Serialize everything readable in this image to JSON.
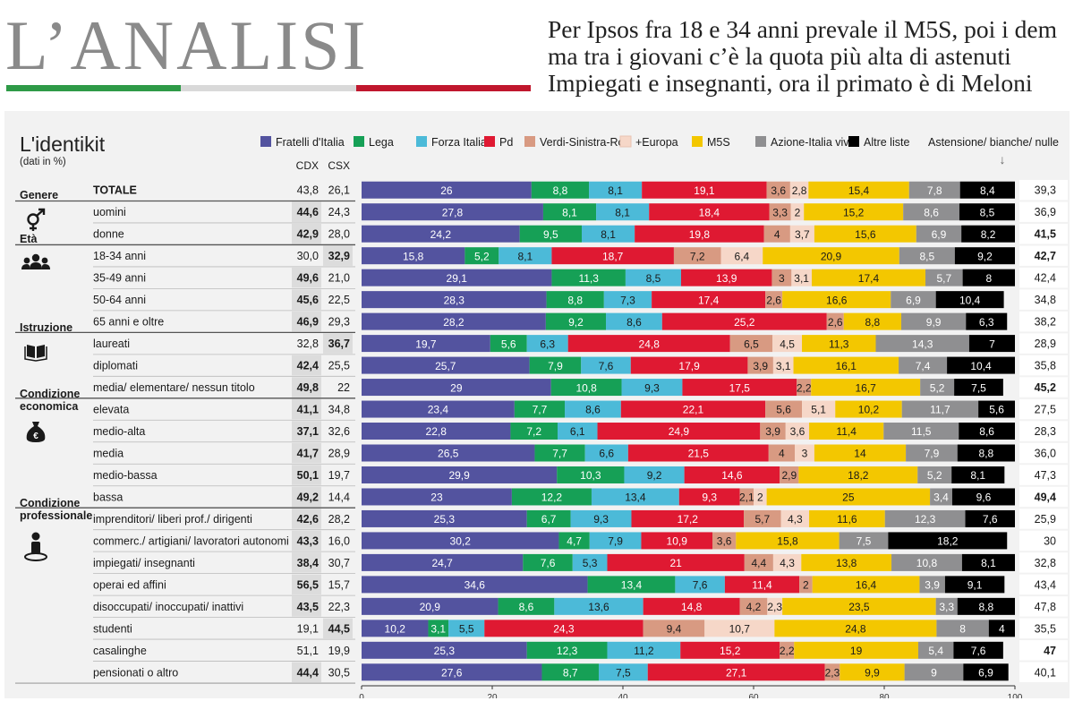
{
  "header": {
    "title": "L’ANALISI",
    "headline": [
      "Per Ipsos fra 18 e 34 anni prevale il M5S, poi i dem",
      "ma tra i giovani c’è la quota più alta di astenuti",
      "Impiegati e insegnanti, ora il primato è di Meloni"
    ],
    "flag_colors": [
      "#2e9a47",
      "#d9d9d9",
      "#c0172d"
    ]
  },
  "chart_data": {
    "type": "bar",
    "stacked": true,
    "orientation": "horizontal",
    "title": "L'identikit",
    "subtitle": "(dati in %)",
    "col_cdx_label": "CDX",
    "col_csx_label": "CSX",
    "abstention_label": "Astensione/ bianche/ nulle",
    "abstention_arrow": "↓",
    "xlim": [
      0,
      100
    ],
    "xticks": [
      0,
      20,
      40,
      60,
      80,
      100
    ],
    "legend": [
      {
        "name": "Fratelli d'Italia",
        "color": "#53539f"
      },
      {
        "name": "Lega",
        "color": "#16a056"
      },
      {
        "name": "Forza Italia",
        "color": "#4cbad8"
      },
      {
        "name": "Pd",
        "color": "#df1932"
      },
      {
        "name": "Verdi-Sinistra-Rc",
        "color": "#d89a82"
      },
      {
        "name": "+Europa",
        "color": "#f6d7c8"
      },
      {
        "name": "M5S",
        "color": "#f3c700"
      },
      {
        "name": "Azione-Italia viva",
        "color": "#8f8f91"
      },
      {
        "name": "Altre liste",
        "color": "#000000"
      }
    ],
    "groups": [
      {
        "label": [
          "Genere"
        ],
        "icon": "gender-icon",
        "start": 1,
        "end": 2
      },
      {
        "label": [
          "Età"
        ],
        "icon": "people-icon",
        "start": 3,
        "end": 6
      },
      {
        "label": [
          "Istruzione"
        ],
        "icon": "book-icon",
        "start": 7,
        "end": 9
      },
      {
        "label": [
          "Condizione",
          "economica"
        ],
        "icon": "money-bag-icon",
        "start": 10,
        "end": 14
      },
      {
        "label": [
          "Condizione",
          "professionale"
        ],
        "icon": "person-icon",
        "start": 15,
        "end": 22
      }
    ],
    "rows": [
      {
        "label": "TOTALE",
        "cdx": "43,8",
        "csx": "26,1",
        "bold": "",
        "values": [
          26,
          8.8,
          8.1,
          19.1,
          3.6,
          2.8,
          15.4,
          7.8,
          8.4
        ],
        "abst": "39,3",
        "abst_bold": false
      },
      {
        "label": "uomini",
        "cdx": "44,6",
        "csx": "24,3",
        "bold": "cdx",
        "values": [
          27.8,
          8.1,
          8.1,
          18.4,
          3.3,
          2,
          15.2,
          8.6,
          8.5
        ],
        "abst": "36,9",
        "abst_bold": false
      },
      {
        "label": "donne",
        "cdx": "42,9",
        "csx": "28,0",
        "bold": "cdx",
        "values": [
          24.2,
          9.5,
          8.1,
          19.8,
          4,
          3.7,
          15.6,
          6.9,
          8.2
        ],
        "abst": "41,5",
        "abst_bold": true
      },
      {
        "label": "18-34 anni",
        "cdx": "30,0",
        "csx": "32,9",
        "bold": "csx",
        "values": [
          15.8,
          5.2,
          8.1,
          18.7,
          7.2,
          6.4,
          20.9,
          8.5,
          9.2
        ],
        "abst": "42,7",
        "abst_bold": true
      },
      {
        "label": "35-49 anni",
        "cdx": "49,6",
        "csx": "21,0",
        "bold": "cdx",
        "values": [
          29.1,
          11.3,
          8.5,
          13.9,
          3,
          3.1,
          17.4,
          5.7,
          8
        ],
        "abst": "42,4",
        "abst_bold": false
      },
      {
        "label": "50-64 anni",
        "cdx": "45,6",
        "csx": "22,5",
        "bold": "cdx",
        "values": [
          28.3,
          8.8,
          7.3,
          17.4,
          2.6,
          0,
          16.6,
          6.9,
          10.4
        ],
        "abst": "34,8",
        "abst_bold": false
      },
      {
        "label": "65 anni e oltre",
        "cdx": "46,9",
        "csx": "29,3",
        "bold": "cdx",
        "values": [
          28.2,
          9.2,
          8.6,
          25.2,
          2.6,
          0,
          8.8,
          9.9,
          6.3
        ],
        "abst": "38,2",
        "abst_bold": false
      },
      {
        "label": "laureati",
        "cdx": "32,8",
        "csx": "36,7",
        "bold": "csx",
        "values": [
          19.7,
          5.6,
          6.3,
          24.8,
          6.5,
          4.5,
          11.3,
          14.3,
          7
        ],
        "abst": "28,9",
        "abst_bold": false
      },
      {
        "label": "diplomati",
        "cdx": "42,4",
        "csx": "25,5",
        "bold": "cdx",
        "values": [
          25.7,
          7.9,
          7.6,
          17.9,
          3.9,
          3.1,
          16.1,
          7.4,
          10.4
        ],
        "abst": "35,8",
        "abst_bold": false
      },
      {
        "label": "media/ elementare/ nessun titolo",
        "cdx": "49,8",
        "csx": "22",
        "bold": "cdx",
        "values": [
          29,
          10.8,
          9.3,
          17.5,
          2.2,
          0,
          16.7,
          5.2,
          7.5
        ],
        "abst": "45,2",
        "abst_bold": true
      },
      {
        "label": "elevata",
        "cdx": "41,1",
        "csx": "34,8",
        "bold": "cdx",
        "values": [
          23.4,
          7.7,
          8.6,
          22.1,
          5.6,
          5.1,
          10.2,
          11.7,
          5.6
        ],
        "abst": "27,5",
        "abst_bold": false
      },
      {
        "label": "medio-alta",
        "cdx": "37,1",
        "csx": "32,6",
        "bold": "cdx",
        "values": [
          22.8,
          7.2,
          6.1,
          24.9,
          3.9,
          3.6,
          11.4,
          11.5,
          8.6
        ],
        "abst": "28,3",
        "abst_bold": false
      },
      {
        "label": "media",
        "cdx": "41,7",
        "csx": "28,9",
        "bold": "cdx",
        "values": [
          26.5,
          7.7,
          6.6,
          21.5,
          4,
          3,
          14,
          7.9,
          8.8
        ],
        "abst": "36,0",
        "abst_bold": false
      },
      {
        "label": "medio-bassa",
        "cdx": "50,1",
        "csx": "19,7",
        "bold": "cdx",
        "values": [
          29.9,
          10.3,
          9.2,
          14.6,
          2.9,
          0,
          18.2,
          5.2,
          8.1
        ],
        "abst": "47,3",
        "abst_bold": false
      },
      {
        "label": "bassa",
        "cdx": "49,2",
        "csx": "14,4",
        "bold": "cdx",
        "values": [
          23,
          12.2,
          13.4,
          9.3,
          2.1,
          2,
          25,
          3.4,
          9.6
        ],
        "abst": "49,4",
        "abst_bold": true
      },
      {
        "label": "imprenditori/ liberi prof./ dirigenti",
        "cdx": "42,6",
        "csx": "28,2",
        "bold": "cdx",
        "values": [
          25.3,
          6.7,
          9.3,
          17.2,
          5.7,
          4.3,
          11.6,
          12.3,
          7.6
        ],
        "abst": "25,9",
        "abst_bold": false
      },
      {
        "label": "commerc./ artigiani/ lavoratori autonomi",
        "cdx": "43,3",
        "csx": "16,0",
        "bold": "cdx",
        "values": [
          30.2,
          4.7,
          7.9,
          10.9,
          3.6,
          0,
          15.8,
          7.5,
          18.2
        ],
        "abst": "30",
        "abst_bold": false
      },
      {
        "label": "impiegati/ insegnanti",
        "cdx": "38,4",
        "csx": "30,7",
        "bold": "cdx",
        "values": [
          24.7,
          7.6,
          5.3,
          21,
          4.4,
          4.3,
          13.8,
          10.8,
          8.1
        ],
        "abst": "32,8",
        "abst_bold": false
      },
      {
        "label": "operai ed affini",
        "cdx": "56,5",
        "csx": "15,7",
        "bold": "cdx",
        "values": [
          34.6,
          13.4,
          7.6,
          11.4,
          2,
          0,
          16.4,
          3.9,
          9.1
        ],
        "abst": "43,4",
        "abst_bold": false
      },
      {
        "label": "disoccupati/ inoccupati/ inattivi",
        "cdx": "43,5",
        "csx": "22,3",
        "bold": "cdx",
        "values": [
          20.9,
          8.6,
          13.6,
          14.8,
          4.2,
          2.3,
          23.5,
          3.3,
          8.8
        ],
        "abst": "47,8",
        "abst_bold": false
      },
      {
        "label": "studenti",
        "cdx": "19,1",
        "csx": "44,5",
        "bold": "csx",
        "values": [
          10.2,
          3.1,
          5.5,
          24.3,
          9.4,
          10.7,
          24.8,
          8,
          4
        ],
        "abst": "35,5",
        "abst_bold": false
      },
      {
        "label": "casalinghe",
        "cdx": "51,1",
        "csx": "19,9",
        "bold": "",
        "values": [
          25.3,
          12.3,
          11.2,
          15.2,
          2.2,
          0,
          19,
          5.4,
          7.6
        ],
        "abst": "47",
        "abst_bold": true
      },
      {
        "label": "pensionati o altro",
        "cdx": "44,4",
        "csx": "30,5",
        "bold": "cdx",
        "values": [
          27.6,
          8.7,
          7.5,
          27.1,
          2.3,
          0,
          9.9,
          9,
          6.9
        ],
        "abst": "40,1",
        "abst_bold": false
      }
    ]
  }
}
